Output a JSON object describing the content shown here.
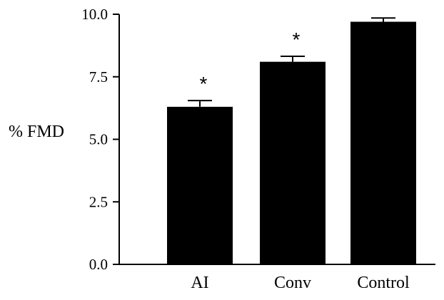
{
  "chart_data": {
    "type": "bar",
    "categories": [
      "AI",
      "Conv",
      "Control"
    ],
    "values": [
      6.3,
      8.1,
      9.7
    ],
    "errors": [
      0.25,
      0.22,
      0.15
    ],
    "annotations": [
      "*",
      "*",
      ""
    ],
    "title": "",
    "xlabel": "",
    "ylabel": "% FMD",
    "ylim": [
      0,
      10
    ],
    "yticks": [
      "0.0",
      "2.5",
      "5.0",
      "7.5",
      "10.0"
    ],
    "grid": false,
    "bar_color": "#000000"
  }
}
